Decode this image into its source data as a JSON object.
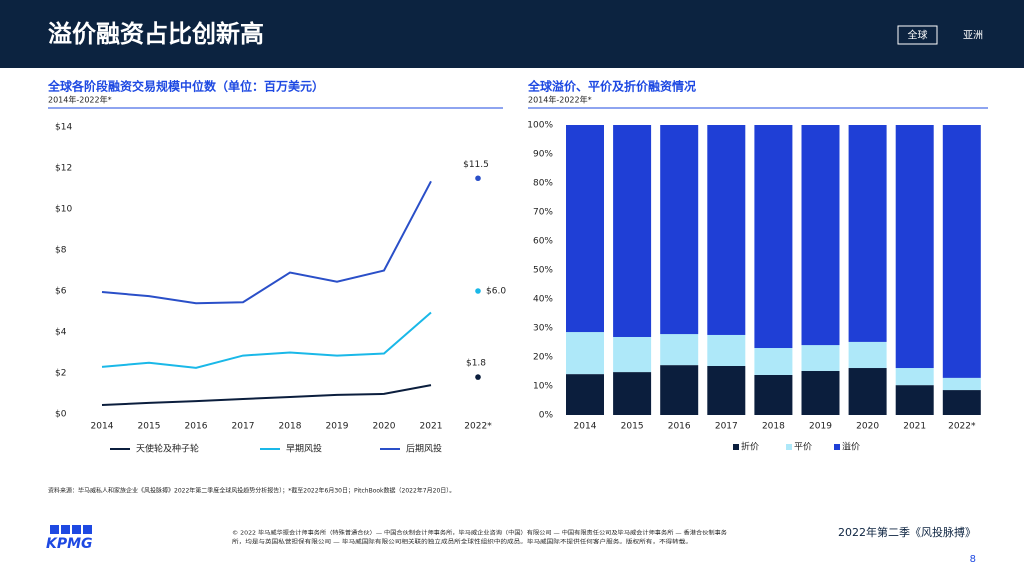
{
  "header": {
    "title": "溢价融资占比创新高",
    "tabs": [
      "全球",
      "亚洲"
    ]
  },
  "chart_data": [
    {
      "type": "line",
      "title": "全球各阶段融资交易规模中位数（单位：百万美元）",
      "subtitle": "2014年-2022年*",
      "categories": [
        "2014",
        "2015",
        "2016",
        "2017",
        "2018",
        "2019",
        "2020",
        "2021",
        "2022*"
      ],
      "series": [
        {
          "name": "天使轮及种子轮",
          "color": "#0b1e3d",
          "values": [
            0.44,
            0.54,
            0.63,
            0.73,
            0.83,
            0.93,
            0.98,
            1.41,
            1.8
          ],
          "value_labels": [
            null,
            null,
            null,
            null,
            null,
            null,
            null,
            null,
            "$1.8"
          ]
        },
        {
          "name": "早期风投",
          "color": "#1ab8e8",
          "values": [
            2.3,
            2.5,
            2.25,
            2.85,
            3.0,
            2.85,
            2.95,
            4.95,
            6.0
          ],
          "value_labels": [
            null,
            null,
            null,
            null,
            null,
            null,
            null,
            null,
            "$6.0"
          ]
        },
        {
          "name": "后期风投",
          "color": "#2a4fc8",
          "values": [
            5.95,
            5.75,
            5.4,
            5.45,
            6.9,
            6.45,
            7.0,
            11.35,
            11.5
          ],
          "value_labels": [
            null,
            null,
            null,
            null,
            null,
            null,
            null,
            null,
            "$11.5"
          ]
        }
      ],
      "ylim": [
        0,
        14
      ],
      "yticks": [
        {
          "value": 0,
          "label": "$0"
        },
        {
          "value": 2,
          "label": "$2"
        },
        {
          "value": 4,
          "label": "$4"
        },
        {
          "value": 6,
          "label": "$6"
        },
        {
          "value": 8,
          "label": "$8"
        },
        {
          "value": 10,
          "label": "$10"
        },
        {
          "value": 12,
          "label": "$12"
        },
        {
          "value": 14,
          "label": "$14"
        }
      ],
      "legend": "bottom"
    },
    {
      "type": "stacked_bar",
      "title": "全球溢价、平价及折价融资情况",
      "subtitle": "2014年-2022年*",
      "categories": [
        "2014",
        "2015",
        "2016",
        "2017",
        "2018",
        "2019",
        "2020",
        "2021",
        "2022*"
      ],
      "series": [
        {
          "name": "折价",
          "color": "#0b1e3d",
          "values": [
            14.1,
            14.8,
            17.2,
            16.9,
            13.8,
            15.2,
            16.2,
            10.3,
            8.6
          ]
        },
        {
          "name": "平价",
          "color": "#aee8f9",
          "values": [
            14.5,
            12.1,
            10.7,
            10.7,
            9.3,
            8.9,
            9.0,
            5.9,
            4.2
          ]
        },
        {
          "name": "溢价",
          "color": "#1f3fd6",
          "values": [
            71.4,
            73.1,
            72.1,
            72.4,
            76.9,
            75.9,
            74.8,
            83.8,
            87.2
          ]
        }
      ],
      "ylim": [
        0,
        100
      ],
      "yticks": [
        {
          "value": 0,
          "label": "0%"
        },
        {
          "value": 10,
          "label": "10%"
        },
        {
          "value": 20,
          "label": "20%"
        },
        {
          "value": 30,
          "label": "30%"
        },
        {
          "value": 40,
          "label": "40%"
        },
        {
          "value": 50,
          "label": "50%"
        },
        {
          "value": 60,
          "label": "60%"
        },
        {
          "value": 70,
          "label": "70%"
        },
        {
          "value": 80,
          "label": "80%"
        },
        {
          "value": 90,
          "label": "90%"
        },
        {
          "value": 100,
          "label": "100%"
        }
      ],
      "legend": "bottom"
    }
  ],
  "source": "资料来源：毕马威私人和家族企业《风投脉搏》2022年第二季度全球风投趋势分析报告）；*截至2022年6月30日；PitchBook数据（2022年7月20日）。",
  "footer": {
    "logo": "KPMG",
    "notice": [
      "© 2022 毕马威华振会计师事务所（特殊普通合伙）— 中国合伙制会计师事务所，毕马威企业咨询（中国）有限公司 — 中国有限责任公司及毕马威会计师事务所 — 香港合伙制事务",
      "所，均是与英国私营担保有限公司 — 毕马威国际有限公司相关联的独立成员所全球性组织中的成员。毕马威国际不提供任何客户服务。版权所有，不得转载。"
    ],
    "publication": "2022年第二季《风投脉搏》",
    "page": "8"
  }
}
